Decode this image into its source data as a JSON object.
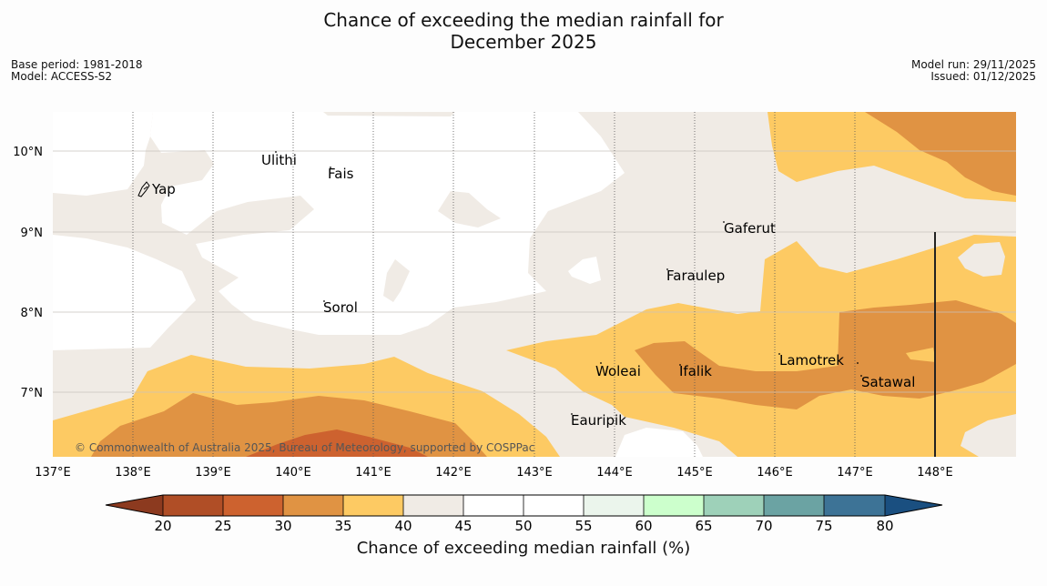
{
  "title": {
    "line1": "Chance of exceeding the median rainfall for",
    "line2": "December 2025"
  },
  "meta_left": {
    "base_period": "Base period: 1981-2018",
    "model": "Model: ACCESS-S2"
  },
  "meta_right": {
    "model_run": "Model run: 29/11/2025",
    "issued": "Issued: 01/12/2025"
  },
  "map": {
    "lon_labels": [
      "137°E",
      "138°E",
      "139°E",
      "140°E",
      "141°E",
      "142°E",
      "143°E",
      "144°E",
      "145°E",
      "146°E",
      "147°E",
      "148°E"
    ],
    "lat_labels": [
      "10°N",
      "9°N",
      "8°N",
      "7°N"
    ],
    "places": [
      "Yap",
      "Ulithi",
      "Fais",
      "Sorol",
      "Gaferut",
      "Faraulep",
      "Woleai",
      "Ifalik",
      "Lamotrek",
      "Satawal",
      "Eauripik"
    ],
    "copyright": "© Commonwealth of Australia 2025, Bureau of Meteorology, supported by COSPPac"
  },
  "colorbar": {
    "tick_labels": [
      "20",
      "25",
      "30",
      "35",
      "40",
      "45",
      "50",
      "55",
      "60",
      "65",
      "70",
      "75",
      "80"
    ],
    "title": "Chance of exceeding median rainfall (%)",
    "colors": {
      "under": "#8c3a1f",
      "bin_20_25": "#b04e26",
      "bin_25_30": "#cd622f",
      "bin_30_35": "#e09343",
      "bin_35_40": "#fdca63",
      "bin_40_45": "#f0ebe5",
      "bin_45_50": "#ffffff",
      "bin_50_55": "#ffffff",
      "bin_55_60": "#ebf5ec",
      "bin_60_65": "#ccffcc",
      "bin_65_70": "#9ed1b9",
      "bin_70_75": "#6ba3a3",
      "bin_75_80": "#3d7396",
      "over": "#1a4f80"
    }
  }
}
